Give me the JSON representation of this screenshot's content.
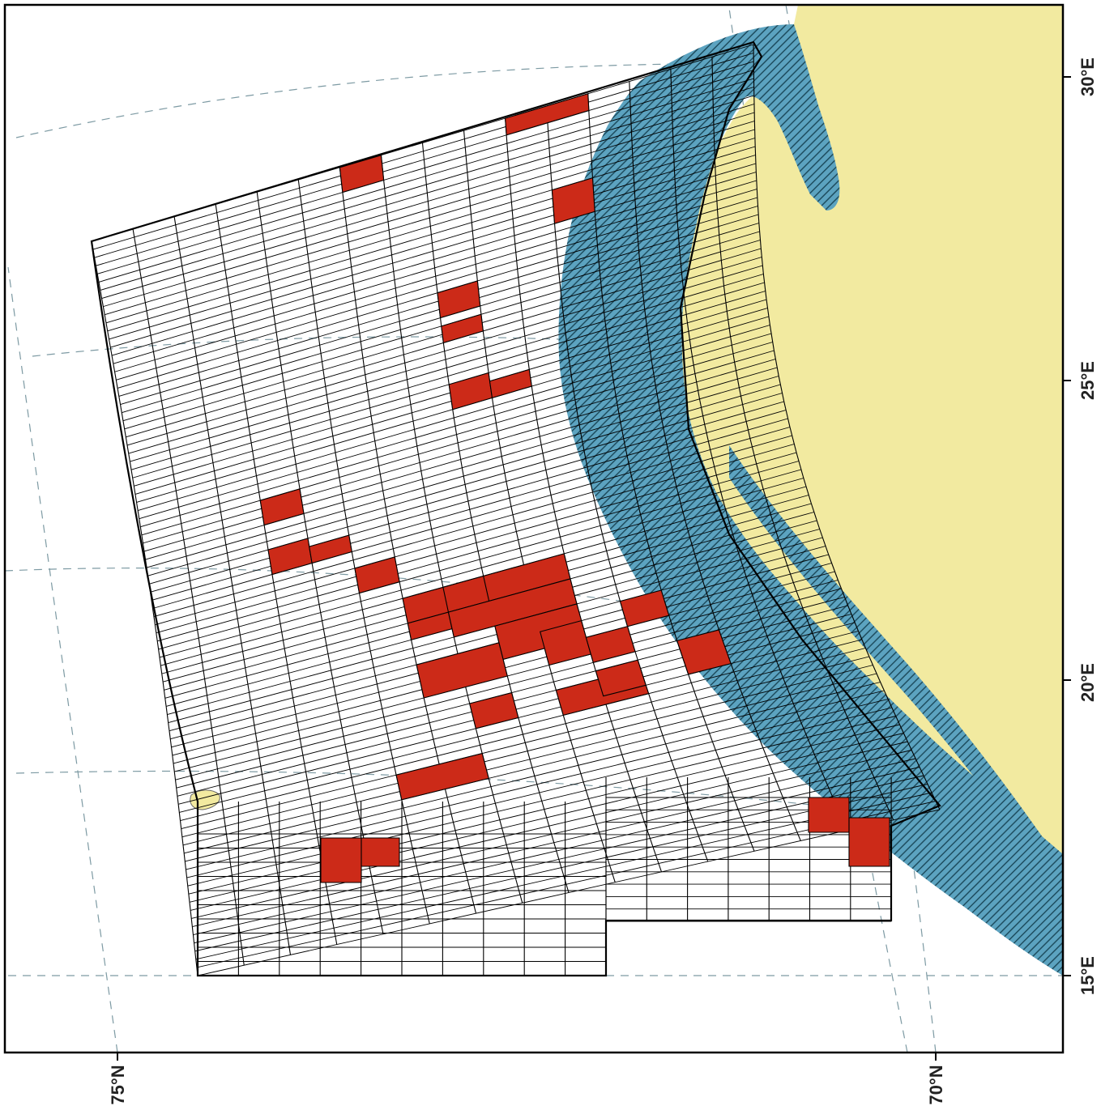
{
  "map": {
    "lon_labels": [
      "30°E",
      "25°E",
      "20°E",
      "15°E"
    ],
    "lat_labels": [
      "75°N",
      "70°N"
    ],
    "colors": {
      "land": "#f2eaa0",
      "zone": "#5ca3c0",
      "hatch": "#1f4e60",
      "block_fill": "#cc2a18",
      "grid_line": "#000000",
      "graticule": "#7d9aa3",
      "frame": "#000000"
    }
  }
}
